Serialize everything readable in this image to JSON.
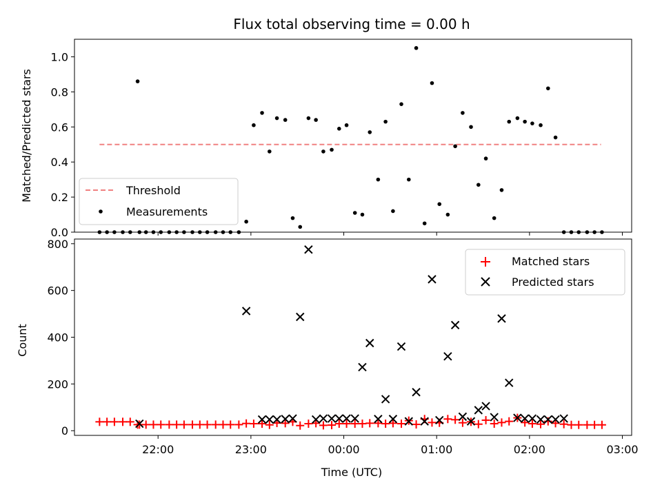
{
  "chart_data": [
    {
      "type": "scatter",
      "title": "Flux total observing time = 0.00 h",
      "xlabel": "",
      "ylabel": "Matched/Predicted stars",
      "ylim": [
        0,
        1.1
      ],
      "yticks": [
        0.0,
        0.2,
        0.4,
        0.6,
        0.8,
        1.0
      ],
      "ytick_labels": [
        "0.0",
        "0.2",
        "0.4",
        "0.6",
        "0.8",
        "1.0"
      ],
      "x_unit": "hours since 22:00 UTC on the shown time axis",
      "legend": {
        "position": "lower-left",
        "entries": [
          "Threshold",
          "Measurements"
        ]
      },
      "threshold": {
        "name": "Threshold",
        "value": 0.5,
        "x_range": [
          -0.63,
          4.77
        ],
        "color": "#f08080"
      },
      "series": [
        {
          "name": "Measurements",
          "color": "#000000",
          "x": [
            -0.63,
            -0.55,
            -0.47,
            -0.38,
            -0.3,
            -0.22,
            -0.2,
            -0.13,
            -0.05,
            0.03,
            0.12,
            0.2,
            0.28,
            0.37,
            0.45,
            0.53,
            0.62,
            0.7,
            0.78,
            0.87,
            0.95,
            1.03,
            1.12,
            1.2,
            1.28,
            1.37,
            1.45,
            1.53,
            1.62,
            1.7,
            1.78,
            1.87,
            1.95,
            2.03,
            2.12,
            2.2,
            2.28,
            2.37,
            2.45,
            2.53,
            2.62,
            2.7,
            2.78,
            2.87,
            2.95,
            3.03,
            3.12,
            3.2,
            3.28,
            3.37,
            3.45,
            3.53,
            3.62,
            3.7,
            3.78,
            3.87,
            3.95,
            4.03,
            4.12,
            4.2,
            4.28,
            4.37,
            4.45,
            4.53,
            4.62,
            4.7,
            4.78
          ],
          "y": [
            0,
            0,
            0,
            0,
            0,
            0.86,
            0,
            0,
            0,
            0,
            0,
            0,
            0,
            0,
            0,
            0,
            0,
            0,
            0,
            0,
            0.06,
            0.61,
            0.68,
            0.46,
            0.65,
            0.64,
            0.08,
            0.03,
            0.65,
            0.64,
            0.46,
            0.47,
            0.59,
            0.61,
            0.11,
            0.1,
            0.57,
            0.3,
            0.63,
            0.12,
            0.73,
            0.3,
            1.05,
            0.05,
            0.85,
            0.16,
            0.1,
            0.49,
            0.68,
            0.6,
            0.27,
            0.42,
            0.08,
            0.24,
            0.63,
            0.65,
            0.63,
            0.62,
            0.61,
            0.82,
            0.54,
            0,
            0,
            0,
            0,
            0,
            0
          ]
        }
      ]
    },
    {
      "type": "scatter",
      "title": "",
      "xlabel": "Time (UTC)",
      "ylabel": "Count",
      "ylim": [
        -20,
        820
      ],
      "yticks": [
        0,
        200,
        400,
        600,
        800
      ],
      "ytick_labels": [
        "0",
        "200",
        "400",
        "600",
        "800"
      ],
      "xlim": [
        -0.9,
        5.1
      ],
      "xticks": [
        0,
        1,
        2,
        3,
        4,
        5
      ],
      "xtick_labels": [
        "22:00",
        "23:00",
        "00:00",
        "01:00",
        "02:00",
        "03:00"
      ],
      "x_unit": "hours since 22:00 UTC",
      "legend": {
        "position": "top-right",
        "entries": [
          "Matched stars",
          "Predicted stars"
        ]
      },
      "series": [
        {
          "name": "Matched stars",
          "marker": "plus",
          "color": "#ff0000",
          "x": [
            -0.63,
            -0.55,
            -0.47,
            -0.38,
            -0.3,
            -0.22,
            -0.2,
            -0.13,
            -0.05,
            0.03,
            0.12,
            0.2,
            0.28,
            0.37,
            0.45,
            0.53,
            0.62,
            0.7,
            0.78,
            0.87,
            0.95,
            1.03,
            1.12,
            1.2,
            1.28,
            1.37,
            1.45,
            1.53,
            1.62,
            1.7,
            1.78,
            1.87,
            1.95,
            2.03,
            2.12,
            2.2,
            2.28,
            2.37,
            2.45,
            2.53,
            2.62,
            2.7,
            2.78,
            2.87,
            2.95,
            3.03,
            3.12,
            3.2,
            3.28,
            3.37,
            3.45,
            3.53,
            3.62,
            3.7,
            3.78,
            3.87,
            3.95,
            4.03,
            4.12,
            4.2,
            4.28,
            4.37,
            4.45,
            4.53,
            4.62,
            4.7,
            4.78
          ],
          "y": [
            38,
            38,
            38,
            38,
            38,
            26,
            26,
            26,
            26,
            26,
            26,
            26,
            26,
            26,
            26,
            26,
            26,
            26,
            26,
            26,
            31,
            30,
            30,
            25,
            33,
            32,
            38,
            22,
            30,
            32,
            23,
            24,
            30,
            30,
            30,
            30,
            32,
            32,
            30,
            32,
            30,
            43,
            27,
            50,
            35,
            34,
            50,
            47,
            34,
            38,
            28,
            45,
            30,
            35,
            40,
            55,
            35,
            30,
            28,
            40,
            32,
            28,
            25,
            25,
            25,
            25,
            25
          ]
        },
        {
          "name": "Predicted stars",
          "marker": "x",
          "color": "#000000",
          "x": [
            -0.2,
            0.95,
            1.12,
            1.2,
            1.28,
            1.37,
            1.45,
            1.53,
            1.62,
            1.7,
            1.78,
            1.87,
            1.95,
            2.03,
            2.12,
            2.2,
            2.28,
            2.37,
            2.45,
            2.53,
            2.62,
            2.7,
            2.78,
            2.87,
            2.95,
            3.03,
            3.12,
            3.2,
            3.28,
            3.37,
            3.45,
            3.53,
            3.62,
            3.7,
            3.78,
            3.87,
            3.95,
            4.03,
            4.12,
            4.2,
            4.28,
            4.37
          ],
          "y": [
            30,
            512,
            48,
            48,
            48,
            50,
            52,
            487,
            775,
            48,
            52,
            52,
            52,
            52,
            52,
            272,
            375,
            50,
            135,
            50,
            360,
            40,
            165,
            40,
            648,
            45,
            318,
            452,
            60,
            40,
            88,
            105,
            58,
            480,
            205,
            55,
            52,
            52,
            48,
            48,
            48,
            52
          ]
        }
      ]
    }
  ]
}
